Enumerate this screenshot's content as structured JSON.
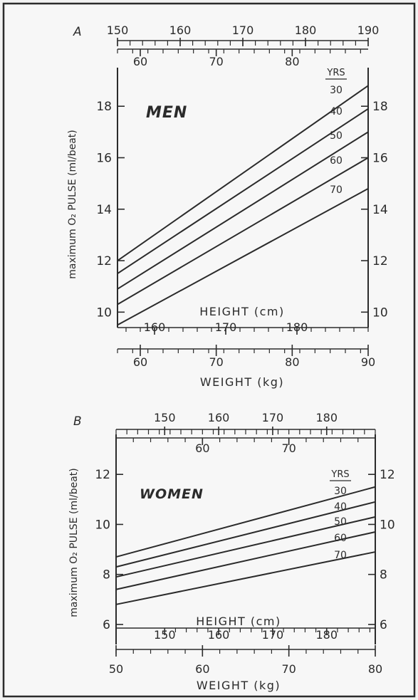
{
  "chart_data": [
    {
      "type": "line",
      "panel_letter": "A",
      "title": "MEN",
      "ylabel": "maximum O₂ PULSE (ml/beat)",
      "legend_header": "YRS",
      "x_weight": {
        "label": "WEIGHT (kg)",
        "range": [
          57,
          90
        ],
        "ticks": [
          60,
          70,
          80,
          90
        ]
      },
      "x_height": {
        "label": "HEIGHT (cm)",
        "ticks": [
          150,
          160,
          170,
          180,
          190
        ]
      },
      "ylim": [
        9.4,
        19.5
      ],
      "yticks": [
        10,
        12,
        14,
        16,
        18
      ],
      "yticks_right": [
        10,
        12,
        14,
        16,
        18
      ],
      "top_axis": {
        "height_ticks": [
          150,
          160,
          170,
          180,
          190
        ],
        "weight_ticks": [
          60,
          70,
          80
        ]
      },
      "bottom_axis": {
        "height_ticks": [
          160,
          170,
          180
        ],
        "weight_ticks": [
          60,
          70,
          80,
          90
        ]
      },
      "series": [
        {
          "name": "30",
          "x": [
            57,
            90
          ],
          "y": [
            12.0,
            18.8
          ]
        },
        {
          "name": "40",
          "x": [
            57,
            90
          ],
          "y": [
            11.5,
            17.9
          ]
        },
        {
          "name": "50",
          "x": [
            57,
            90
          ],
          "y": [
            10.9,
            17.0
          ]
        },
        {
          "name": "60",
          "x": [
            57,
            90
          ],
          "y": [
            10.3,
            16.0
          ]
        },
        {
          "name": "70",
          "x": [
            57,
            90
          ],
          "y": [
            9.5,
            14.8
          ]
        }
      ]
    },
    {
      "type": "line",
      "panel_letter": "B",
      "title": "WOMEN",
      "ylabel": "maximum O₂ PULSE (ml/beat)",
      "legend_header": "YRS",
      "x_weight": {
        "label": "WEIGHT (kg)",
        "range": [
          50,
          80
        ],
        "ticks": [
          50,
          60,
          70,
          80
        ]
      },
      "x_height": {
        "label": "HEIGHT (cm)",
        "ticks": [
          150,
          160,
          170,
          180
        ]
      },
      "ylim": [
        5.2,
        13.6
      ],
      "yticks": [
        6,
        8,
        10,
        12
      ],
      "yticks_right": [
        6,
        8,
        10,
        12
      ],
      "top_axis": {
        "height_ticks": [
          150,
          160,
          170,
          180
        ],
        "weight_ticks": [
          60,
          70
        ]
      },
      "bottom_axis": {
        "height_ticks": [
          150,
          160,
          170,
          180
        ],
        "weight_ticks": [
          50,
          60,
          70,
          80
        ]
      },
      "series": [
        {
          "name": "30",
          "x": [
            50,
            80
          ],
          "y": [
            8.7,
            11.5
          ]
        },
        {
          "name": "40",
          "x": [
            50,
            80
          ],
          "y": [
            8.3,
            10.9
          ]
        },
        {
          "name": "50",
          "x": [
            50,
            80
          ],
          "y": [
            7.9,
            10.3
          ]
        },
        {
          "name": "60",
          "x": [
            50,
            80
          ],
          "y": [
            7.4,
            9.7
          ]
        },
        {
          "name": "70",
          "x": [
            50,
            80
          ],
          "y": [
            6.8,
            8.9
          ]
        }
      ]
    }
  ]
}
